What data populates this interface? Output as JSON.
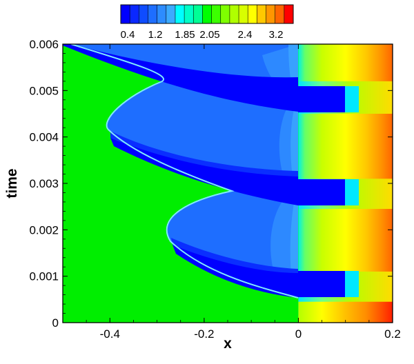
{
  "chart_data": {
    "type": "heatmap",
    "title": "",
    "xlabel": "x",
    "ylabel": "time",
    "xlim": [
      -0.5,
      0.2
    ],
    "ylim": [
      0,
      0.006
    ],
    "x_ticks": [
      {
        "value": -0.4,
        "label": "-0.4"
      },
      {
        "value": -0.2,
        "label": "-0.2"
      },
      {
        "value": 0.0,
        "label": "0"
      },
      {
        "value": 0.2,
        "label": "0.2"
      }
    ],
    "y_ticks": [
      {
        "value": 0.0,
        "label": "0"
      },
      {
        "value": 0.001,
        "label": "0.001"
      },
      {
        "value": 0.002,
        "label": "0.002"
      },
      {
        "value": 0.003,
        "label": "0.003"
      },
      {
        "value": 0.004,
        "label": "0.004"
      },
      {
        "value": 0.005,
        "label": "0.005"
      },
      {
        "value": 0.006,
        "label": "0.006"
      }
    ],
    "colorbar": {
      "placement": "top",
      "labels": [
        {
          "value": 0.4,
          "label": "0.4"
        },
        {
          "value": 1.2,
          "label": "1.2"
        },
        {
          "value": 1.85,
          "label": "1.85"
        },
        {
          "value": 2.05,
          "label": "2.05"
        },
        {
          "value": 2.4,
          "label": "2.4"
        },
        {
          "value": 3.2,
          "label": "3.2"
        }
      ],
      "colors": [
        "#0000ff",
        "#0a28ff",
        "#0f4cff",
        "#1e6eff",
        "#2d8cff",
        "#3caaff",
        "#00ffff",
        "#00ffc8",
        "#00ff96",
        "#00ff00",
        "#3cff00",
        "#7fff00",
        "#b0ff00",
        "#d8ff00",
        "#ffff00",
        "#ffc800",
        "#ff9600",
        "#ff6400",
        "#ff0000"
      ]
    },
    "field": {
      "ambient_value": 2.05,
      "fronts": [
        {
          "kind": "front",
          "points": [
            [
              -0.48,
              0.006
            ],
            [
              -0.3,
              0.00525
            ]
          ]
        },
        {
          "kind": "front",
          "points": [
            [
              -0.3,
              0.00525
            ],
            [
              -0.4,
              0.0042
            ],
            [
              -0.26,
              0.00295
            ]
          ]
        },
        {
          "kind": "front",
          "points": [
            [
              -0.26,
              0.00295
            ],
            [
              -0.28,
              0.0025
            ],
            [
              -0.4,
              0.0019
            ],
            [
              -0.02,
              0.0006
            ]
          ]
        },
        {
          "kind": "interface",
          "x": 0.0
        }
      ],
      "pulses": [
        {
          "t_start": 0.0,
          "t_end": 0.00045,
          "peak_value": 3.6
        },
        {
          "t_start": 0.0011,
          "t_end": 0.00245,
          "peak_value": 2.9
        },
        {
          "t_start": 0.0031,
          "t_end": 0.0045,
          "peak_value": 3.0
        },
        {
          "t_start": 0.0052,
          "t_end": 0.006,
          "peak_value": 3.1
        }
      ]
    }
  }
}
